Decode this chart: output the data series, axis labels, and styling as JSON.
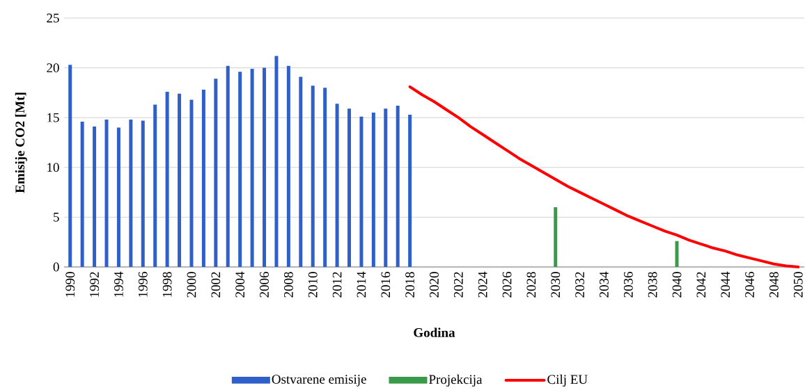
{
  "chart_data": {
    "type": "bar",
    "xlabel": "Godina",
    "ylabel": "Emisije CO2 [Mt]",
    "categories": [
      "1990",
      null,
      "1992",
      null,
      "1994",
      null,
      "1996",
      null,
      "1998",
      null,
      "2000",
      null,
      "2002",
      null,
      "2004",
      null,
      "2006",
      null,
      "2008",
      null,
      "2010",
      null,
      "2012",
      null,
      "2014",
      null,
      "2016",
      null,
      "2018",
      null,
      "2020",
      null,
      "2022",
      null,
      "2024",
      null,
      "2026",
      null,
      "2028",
      null,
      "2030",
      null,
      "2032",
      null,
      "2034",
      null,
      "2036",
      null,
      "2038",
      null,
      "2040",
      null,
      "2042",
      null,
      "2044",
      null,
      "2046",
      null,
      "2048",
      null,
      "2050"
    ],
    "series": [
      {
        "name": "Ostvarene emisije",
        "color": "#2f5fc8",
        "values": [
          20.3,
          14.6,
          14.1,
          14.8,
          14.0,
          14.8,
          14.7,
          16.3,
          17.6,
          17.4,
          16.8,
          17.8,
          18.9,
          20.2,
          19.6,
          19.9,
          20.0,
          21.2,
          20.2,
          19.1,
          18.2,
          18.0,
          16.4,
          15.9,
          15.1,
          15.5,
          15.9,
          16.2,
          15.3,
          null,
          null,
          null,
          null,
          null,
          null,
          null,
          null,
          null,
          null,
          null,
          null,
          null,
          null,
          null,
          null,
          null,
          null,
          null,
          null,
          null,
          null,
          null,
          null,
          null,
          null,
          null,
          null,
          null,
          null,
          null,
          null
        ]
      },
      {
        "name": "Projekcija",
        "color": "#3a9a4a",
        "values": [
          null,
          null,
          null,
          null,
          null,
          null,
          null,
          null,
          null,
          null,
          null,
          null,
          null,
          null,
          null,
          null,
          null,
          null,
          null,
          null,
          null,
          null,
          null,
          null,
          null,
          null,
          null,
          null,
          null,
          null,
          null,
          null,
          null,
          null,
          null,
          null,
          null,
          null,
          null,
          null,
          6.0,
          null,
          null,
          null,
          null,
          null,
          null,
          null,
          null,
          null,
          2.6,
          null,
          null,
          null,
          null,
          null,
          null,
          null,
          null,
          null,
          null
        ]
      },
      {
        "name": "Cilj EU",
        "type": "line",
        "color": "#ff0000",
        "values": [
          null,
          null,
          null,
          null,
          null,
          null,
          null,
          null,
          null,
          null,
          null,
          null,
          null,
          null,
          null,
          null,
          null,
          null,
          null,
          null,
          null,
          null,
          null,
          null,
          null,
          null,
          null,
          null,
          18.1,
          17.3,
          16.6,
          15.8,
          15.0,
          14.1,
          13.3,
          12.5,
          11.7,
          10.9,
          10.2,
          9.5,
          8.8,
          8.1,
          7.5,
          6.9,
          6.3,
          5.7,
          5.1,
          4.6,
          4.1,
          3.6,
          3.2,
          2.7,
          2.3,
          1.9,
          1.6,
          1.2,
          0.9,
          0.6,
          0.3,
          0.1,
          0.0
        ]
      }
    ],
    "ylim": [
      0,
      25
    ],
    "yticks": [
      0,
      5,
      10,
      15,
      20,
      25
    ],
    "grid": "y",
    "legend": "bottom"
  }
}
